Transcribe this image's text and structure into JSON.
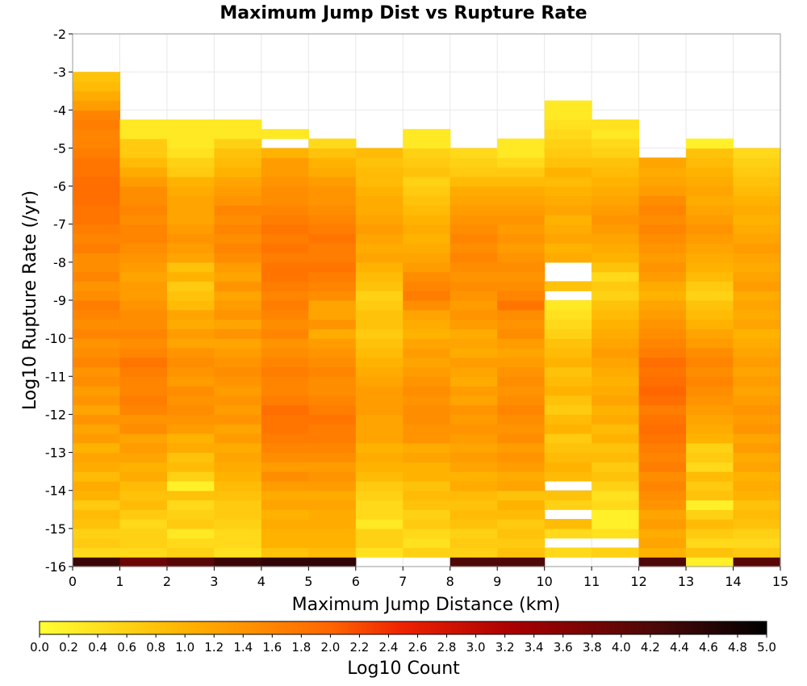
{
  "chart_data": {
    "type": "heatmap",
    "title": "Maximum Jump Dist vs Rupture Rate",
    "xlabel": "Maximum Jump Distance (km)",
    "ylabel": "Log10 Rupture Rate (/yr)",
    "colorbar_label": "Log10 Count",
    "xlim": [
      0,
      15
    ],
    "ylim": [
      -16,
      -2
    ],
    "x_ticks": [
      "0",
      "1",
      "2",
      "3",
      "4",
      "5",
      "6",
      "7",
      "8",
      "9",
      "10",
      "11",
      "12",
      "13",
      "14",
      "15"
    ],
    "y_ticks": [
      "-2",
      "-3",
      "-4",
      "-5",
      "-6",
      "-7",
      "-8",
      "-9",
      "-10",
      "-11",
      "-12",
      "-13",
      "-14",
      "-15",
      "-16"
    ],
    "colorbar_range": [
      0,
      5
    ],
    "colorbar_ticks": [
      "0.0",
      "0.2",
      "0.4",
      "0.6",
      "0.8",
      "1.0",
      "1.2",
      "1.4",
      "1.6",
      "1.8",
      "2.0",
      "2.2",
      "2.4",
      "2.6",
      "2.8",
      "3.0",
      "3.2",
      "3.4",
      "3.6",
      "3.8",
      "4.0",
      "4.2",
      "4.4",
      "4.6",
      "4.8",
      "5.0"
    ],
    "colormap": "yellow-orange-red-black",
    "x_bin_width": 1,
    "y_bin_width": 0.25,
    "y_bin_start": -16,
    "z_columns": [
      [
        4.4,
        0.5,
        0.7,
        0.6,
        0.8,
        0.9,
        0.7,
        1.0,
        1.1,
        0.9,
        1.1,
        1.2,
        1.0,
        1.3,
        1.2,
        1.4,
        1.2,
        1.4,
        1.3,
        1.5,
        1.4,
        1.6,
        1.5,
        1.4,
        1.6,
        1.5,
        1.6,
        1.7,
        1.5,
        1.4,
        1.6,
        1.5,
        1.5,
        1.7,
        1.6,
        1.7,
        1.8,
        1.8,
        1.9,
        1.9,
        1.9,
        1.8,
        1.8,
        1.7,
        1.6,
        1.6,
        1.7,
        1.6,
        1.3,
        1.1,
        0.9,
        0.8,
        null,
        null,
        null,
        null
      ],
      [
        3.9,
        0.5,
        0.6,
        0.6,
        0.5,
        0.7,
        0.9,
        0.8,
        0.9,
        1.1,
        1.0,
        1.2,
        1.3,
        1.2,
        1.5,
        1.4,
        1.6,
        1.7,
        1.6,
        1.6,
        1.7,
        1.8,
        1.6,
        1.5,
        1.6,
        1.5,
        1.5,
        1.4,
        1.3,
        1.3,
        1.2,
        1.3,
        1.4,
        1.5,
        1.6,
        1.6,
        1.5,
        1.6,
        1.5,
        1.5,
        1.3,
        1.1,
        0.9,
        0.7,
        0.7,
        0.3,
        0.3,
        null,
        null,
        null,
        null,
        null,
        null,
        null,
        null,
        null
      ],
      [
        4.1,
        0.6,
        0.5,
        0.3,
        0.7,
        0.6,
        0.5,
        0.8,
        0.2,
        0.6,
        0.9,
        0.8,
        1.1,
        1.0,
        1.3,
        1.4,
        1.5,
        1.4,
        1.5,
        1.3,
        1.4,
        1.5,
        1.4,
        1.2,
        1.3,
        1.1,
        1.2,
        0.9,
        0.8,
        0.7,
        1.0,
        0.8,
        1.2,
        1.3,
        1.4,
        1.3,
        1.2,
        1.2,
        1.2,
        1.1,
        1.0,
        0.7,
        0.6,
        0.4,
        0.3,
        0.3,
        0.3,
        null,
        null,
        null,
        null,
        null,
        null,
        null,
        null,
        null
      ],
      [
        4.4,
        0.4,
        0.5,
        0.5,
        0.6,
        0.7,
        0.7,
        0.8,
        0.9,
        1.0,
        1.1,
        1.2,
        1.1,
        1.3,
        1.2,
        1.4,
        1.3,
        1.4,
        1.3,
        1.4,
        1.5,
        1.4,
        1.3,
        1.2,
        1.4,
        1.2,
        1.4,
        1.3,
        1.2,
        1.4,
        1.2,
        1.3,
        1.5,
        1.6,
        1.5,
        1.6,
        1.5,
        1.6,
        1.4,
        1.3,
        1.2,
        1.0,
        0.9,
        0.8,
        0.6,
        0.3,
        0.3,
        null,
        null,
        null,
        null,
        null,
        null,
        null,
        null,
        null
      ],
      [
        4.5,
        0.8,
        1.0,
        1.0,
        1.1,
        1.0,
        1.2,
        1.1,
        1.3,
        1.5,
        1.3,
        1.5,
        1.6,
        1.7,
        1.8,
        1.8,
        1.9,
        1.7,
        1.6,
        1.6,
        1.7,
        1.6,
        1.5,
        1.4,
        1.6,
        1.5,
        1.6,
        1.7,
        1.6,
        1.7,
        1.8,
        1.8,
        1.7,
        1.8,
        1.7,
        1.8,
        1.7,
        1.6,
        1.5,
        1.5,
        1.4,
        1.3,
        1.3,
        1.0,
        null,
        0.3,
        null,
        null,
        null,
        null,
        null,
        null,
        null,
        null,
        null,
        null
      ],
      [
        4.5,
        0.9,
        1.0,
        1.0,
        1.1,
        1.1,
        1.2,
        1.1,
        1.3,
        1.4,
        1.3,
        1.5,
        1.6,
        1.7,
        1.7,
        1.8,
        1.7,
        1.6,
        1.5,
        1.5,
        1.6,
        1.5,
        1.4,
        1.3,
        1.1,
        1.4,
        1.2,
        1.2,
        1.5,
        1.6,
        1.7,
        1.8,
        1.7,
        1.7,
        1.8,
        1.7,
        1.6,
        1.5,
        1.4,
        1.4,
        1.3,
        1.1,
        1.0,
        0.8,
        0.5,
        null,
        null,
        null,
        null,
        null,
        null,
        null,
        null,
        null,
        null,
        null
      ],
      [
        null,
        0.4,
        0.6,
        0.6,
        0.3,
        0.5,
        0.5,
        0.6,
        0.7,
        0.9,
        1.0,
        1.1,
        1.0,
        1.2,
        1.2,
        1.2,
        1.3,
        1.3,
        1.3,
        1.2,
        1.1,
        1.0,
        0.9,
        0.8,
        0.7,
        0.8,
        0.8,
        0.7,
        0.6,
        0.8,
        0.9,
        1.0,
        1.2,
        1.1,
        1.2,
        1.3,
        1.2,
        1.1,
        1.1,
        1.0,
        0.9,
        0.9,
        0.8,
        0.9,
        null,
        null,
        null,
        null,
        null,
        null,
        null,
        null,
        null,
        null,
        null,
        null
      ],
      [
        null,
        0.6,
        0.4,
        0.5,
        0.7,
        0.6,
        0.8,
        0.9,
        0.8,
        1.0,
        1.0,
        1.2,
        1.1,
        1.4,
        1.4,
        1.5,
        1.5,
        1.4,
        1.5,
        1.4,
        1.3,
        1.2,
        1.3,
        1.2,
        1.0,
        1.1,
        1.2,
        1.5,
        1.7,
        1.6,
        1.5,
        1.3,
        1.2,
        1.1,
        1.0,
        1.1,
        1.0,
        0.9,
        0.8,
        0.7,
        0.6,
        0.8,
        0.7,
        0.6,
        0.3,
        0.3,
        null,
        null,
        null,
        null,
        null,
        null,
        null,
        null,
        null,
        null
      ],
      [
        4.2,
        0.6,
        0.7,
        0.6,
        0.8,
        0.9,
        0.8,
        0.9,
        1.1,
        1.0,
        1.2,
        1.3,
        1.2,
        1.3,
        1.4,
        1.3,
        1.4,
        1.2,
        1.3,
        1.1,
        1.2,
        1.3,
        1.1,
        1.2,
        1.1,
        1.3,
        1.4,
        1.3,
        1.4,
        1.5,
        1.4,
        1.5,
        1.6,
        1.5,
        1.6,
        1.5,
        1.4,
        1.3,
        1.2,
        1.1,
        0.9,
        0.7,
        0.6,
        0.5,
        null,
        null,
        null,
        null,
        null,
        null,
        null,
        null,
        null,
        null,
        null,
        null
      ],
      [
        4.2,
        0.8,
        0.7,
        0.8,
        0.7,
        0.9,
        1.0,
        0.8,
        1.2,
        1.1,
        1.3,
        1.4,
        1.3,
        1.5,
        1.4,
        1.5,
        1.6,
        1.5,
        1.4,
        1.5,
        1.4,
        1.3,
        1.2,
        1.3,
        1.5,
        1.4,
        1.5,
        1.8,
        1.6,
        1.5,
        1.4,
        1.5,
        1.4,
        1.3,
        1.4,
        1.3,
        1.4,
        1.3,
        1.2,
        1.1,
        0.9,
        0.7,
        0.5,
        0.3,
        0.3,
        null,
        null,
        null,
        null,
        null,
        null,
        null,
        null,
        null,
        null,
        null
      ],
      [
        null,
        0.5,
        null,
        0.5,
        0.9,
        null,
        0.6,
        0.8,
        null,
        0.9,
        1.0,
        0.9,
        0.8,
        0.7,
        1.0,
        0.9,
        0.7,
        0.8,
        1.0,
        0.9,
        0.8,
        1.0,
        0.9,
        0.8,
        0.6,
        0.5,
        0.4,
        0.3,
        null,
        0.8,
        null,
        null,
        1.1,
        1.0,
        1.2,
        1.1,
        1.0,
        1.2,
        1.1,
        1.0,
        0.9,
        1.0,
        0.8,
        0.7,
        0.6,
        0.5,
        0.4,
        0.3,
        0.3,
        null,
        null,
        null,
        null,
        null,
        null,
        null
      ],
      [
        null,
        0.6,
        null,
        0.4,
        0.2,
        0.2,
        0.5,
        0.4,
        0.6,
        0.8,
        0.7,
        0.9,
        0.8,
        1.0,
        0.9,
        1.1,
        1.0,
        1.2,
        1.1,
        1.0,
        1.1,
        1.2,
        1.3,
        1.2,
        1.1,
        1.0,
        0.9,
        0.8,
        0.6,
        0.7,
        0.5,
        0.8,
        1.0,
        1.1,
        1.2,
        1.3,
        1.4,
        1.3,
        1.2,
        1.1,
        1.0,
        0.9,
        0.8,
        0.6,
        0.5,
        0.3,
        0.4,
        null,
        null,
        null,
        null,
        null,
        null,
        null,
        null,
        null
      ],
      [
        4.2,
        1.0,
        1.2,
        1.1,
        1.3,
        1.2,
        1.4,
        1.5,
        1.6,
        1.5,
        1.7,
        1.6,
        1.7,
        1.8,
        1.9,
        1.8,
        1.7,
        1.9,
        2.0,
        1.9,
        1.8,
        1.9,
        1.7,
        1.6,
        1.5,
        1.4,
        1.3,
        1.2,
        1.0,
        1.1,
        1.3,
        1.4,
        1.3,
        1.4,
        1.5,
        1.6,
        1.5,
        1.6,
        1.5,
        1.3,
        1.2,
        1.1,
        1.2,
        null,
        null,
        null,
        null,
        null,
        null,
        null,
        null,
        null,
        null,
        null,
        null,
        null
      ],
      [
        0.2,
        0.8,
        0.5,
        0.7,
        0.9,
        0.6,
        0.2,
        0.8,
        0.7,
        0.9,
        0.5,
        0.7,
        0.6,
        1.0,
        1.1,
        1.2,
        1.3,
        1.4,
        1.5,
        1.6,
        1.5,
        1.6,
        1.5,
        1.3,
        1.2,
        1.0,
        0.9,
        0.8,
        0.6,
        0.7,
        0.9,
        1.0,
        1.1,
        1.2,
        1.3,
        1.4,
        1.3,
        1.2,
        1.1,
        1.2,
        1.1,
        1.0,
        0.9,
        0.8,
        0.2,
        null,
        null,
        null,
        null,
        null,
        null,
        null,
        null,
        null,
        null,
        null
      ],
      [
        4.1,
        0.7,
        0.5,
        0.6,
        0.8,
        0.9,
        0.8,
        1.0,
        1.1,
        1.0,
        1.2,
        1.1,
        1.3,
        1.2,
        1.4,
        1.3,
        1.4,
        1.3,
        1.2,
        1.3,
        1.2,
        1.3,
        1.2,
        1.1,
        1.0,
        1.2,
        1.1,
        1.2,
        1.1,
        1.3,
        1.2,
        1.1,
        1.2,
        1.3,
        1.2,
        1.1,
        1.0,
        1.1,
        1.0,
        0.9,
        0.8,
        0.7,
        0.6,
        0.5,
        null,
        null,
        null,
        null,
        null,
        null,
        null,
        null,
        null,
        null,
        null,
        null
      ]
    ]
  }
}
